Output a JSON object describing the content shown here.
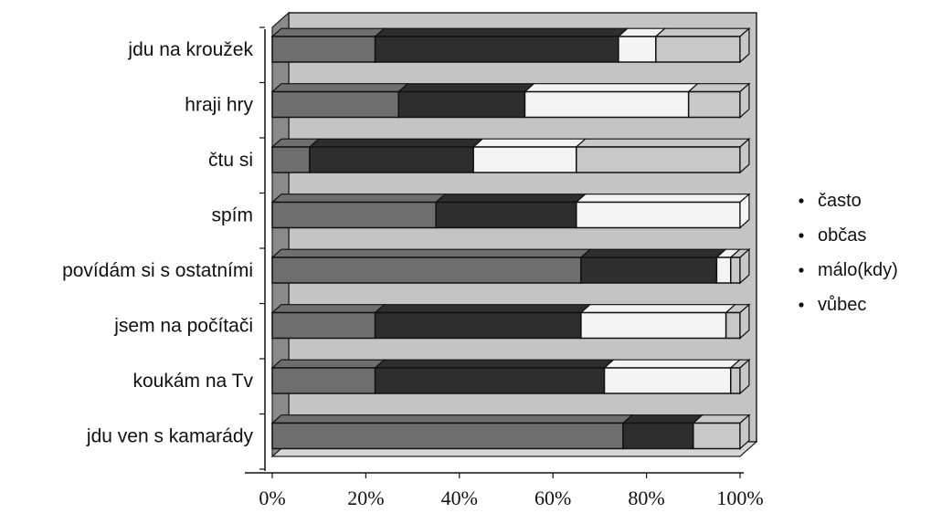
{
  "chart_data": {
    "type": "bar",
    "orientation": "horizontal",
    "stacked": "percent",
    "three_d": true,
    "categories": [
      "jdu na kroužek",
      "hraji hry",
      "čtu si",
      "spím",
      "povídám si s ostatními",
      "jsem na počítači",
      "koukám na Tv",
      "jdu ven s kamarády"
    ],
    "series": [
      {
        "name": "často",
        "color": "#6e6e6e",
        "values": [
          22,
          27,
          8,
          35,
          66,
          22,
          22,
          75
        ]
      },
      {
        "name": "občas",
        "color": "#2e2e2e",
        "values": [
          52,
          27,
          35,
          30,
          29,
          44,
          49,
          15
        ]
      },
      {
        "name": "málo(kdy)",
        "color": "#f4f4f4",
        "values": [
          8,
          35,
          22,
          35,
          3,
          31,
          27,
          0
        ]
      },
      {
        "name": "vůbec",
        "color": "#c8c8c8",
        "values": [
          18,
          11,
          35,
          0,
          2,
          3,
          2,
          10
        ]
      }
    ],
    "x_ticks": [
      "0%",
      "20%",
      "40%",
      "60%",
      "80%",
      "100%"
    ],
    "xlim": [
      0,
      100
    ],
    "legend_position": "right",
    "grid": false,
    "wall_color": "#c4c4c4",
    "side_wall_color": "#8a8a8a"
  }
}
